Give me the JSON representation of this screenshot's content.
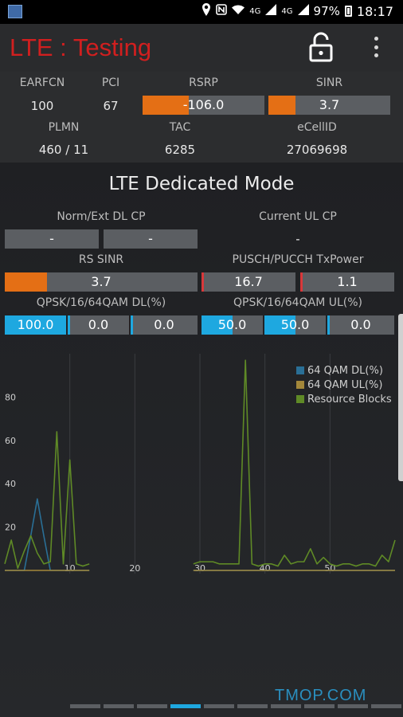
{
  "status_bar": {
    "net_small": "4G",
    "net_small2": "4G",
    "battery": "97%",
    "time": "18:17"
  },
  "app_bar": {
    "title": "LTE : Testing"
  },
  "cell_info": {
    "earfcn_label": "EARFCN",
    "earfcn_value": "100",
    "pci_label": "PCI",
    "pci_value": "67",
    "rsrp_label": "RSRP",
    "rsrp_value": "-106.0",
    "rsrp_fill": 0.38,
    "sinr_label": "SINR",
    "sinr_value": "3.7",
    "sinr_fill": 0.22,
    "plmn_label": "PLMN",
    "plmn_value": "460 / 11",
    "tac_label": "TAC",
    "tac_value": "6285",
    "ecellid_label": "eCellID",
    "ecellid_value": "27069698"
  },
  "dedicated": {
    "title": "LTE Dedicated Mode",
    "norm_dl_cp_label": "Norm/Ext DL CP",
    "norm_dl_cp_1": "-",
    "norm_dl_cp_2": "-",
    "current_ul_cp_label": "Current UL CP",
    "current_ul_cp_value": "-",
    "rs_sinr_label": "RS SINR",
    "rs_sinr_value": "3.7",
    "rs_sinr_fill": 0.22,
    "txpower_label": "PUSCH/PUCCH TxPower",
    "pusch_value": "16.7",
    "pucch_value": "1.1",
    "dl_qam_label": "QPSK/16/64QAM DL(%)",
    "dl_values": [
      "100.0",
      "0.0",
      "0.0"
    ],
    "dl_fills": [
      1.0,
      0.0,
      0.0
    ],
    "ul_qam_label": "QPSK/16/64QAM UL(%)",
    "ul_values": [
      "50.0",
      "50.0",
      "0.0"
    ],
    "ul_fills": [
      0.5,
      0.5,
      0.0
    ]
  },
  "chart_data": {
    "type": "line",
    "xlim": [
      0,
      60
    ],
    "ylim": [
      0,
      100
    ],
    "x_ticks": [
      "10",
      "20",
      "30",
      "40",
      "50"
    ],
    "y_ticks": [
      "20",
      "40",
      "60",
      "80"
    ],
    "legend_position": "top-right",
    "series": [
      {
        "name": "64 QAM DL(%)",
        "color": "#2a6f96",
        "segments": [
          {
            "x": [
              0,
              1,
              2,
              3,
              4,
              5,
              6,
              7,
              8,
              9,
              10,
              11,
              12,
              13
            ],
            "y": [
              0,
              0,
              0,
              0,
              16,
              33,
              16,
              0,
              0,
              0,
              0,
              0,
              0,
              0
            ]
          },
          {
            "x": [
              29,
              30,
              31,
              32,
              33,
              34,
              35,
              36,
              37,
              38,
              39,
              40,
              41,
              42,
              43,
              44,
              45,
              46,
              47,
              48,
              49,
              50,
              51,
              52,
              53,
              54,
              55,
              56,
              57,
              58,
              59,
              60
            ],
            "y": [
              0,
              0,
              0,
              0,
              0,
              0,
              0,
              0,
              0,
              0,
              0,
              0,
              0,
              0,
              0,
              0,
              0,
              0,
              0,
              0,
              0,
              0,
              0,
              0,
              0,
              0,
              0,
              0,
              0,
              0,
              0,
              0
            ]
          }
        ]
      },
      {
        "name": "64 QAM UL(%)",
        "color": "#a3873a",
        "segments": [
          {
            "x": [
              0,
              1,
              2,
              3,
              4,
              5,
              6,
              7,
              8,
              9,
              10,
              11,
              12,
              13
            ],
            "y": [
              0,
              0,
              0,
              0,
              0,
              0,
              0,
              0,
              0,
              0,
              0,
              0,
              0,
              0
            ]
          },
          {
            "x": [
              29,
              30,
              31,
              32,
              33,
              34,
              35,
              36,
              37,
              38,
              39,
              40,
              41,
              42,
              43,
              44,
              45,
              46,
              47,
              48,
              49,
              50,
              51,
              52,
              53,
              54,
              55,
              56,
              57,
              58,
              59,
              60
            ],
            "y": [
              0,
              0,
              0,
              0,
              0,
              0,
              0,
              0,
              0,
              0,
              0,
              0,
              0,
              0,
              0,
              0,
              0,
              0,
              0,
              0,
              0,
              0,
              0,
              0,
              0,
              0,
              0,
              0,
              0,
              0,
              0,
              0
            ]
          }
        ]
      },
      {
        "name": "Resource Blocks",
        "color": "#5f8a26",
        "segments": [
          {
            "x": [
              0,
              1,
              2,
              3,
              4,
              5,
              6,
              7,
              8,
              9,
              10,
              11,
              12,
              13
            ],
            "y": [
              3,
              14,
              1,
              9,
              16,
              8,
              3,
              4,
              64,
              3,
              51,
              3,
              2,
              3
            ]
          },
          {
            "x": [
              29,
              30,
              31,
              32,
              33,
              34,
              35,
              36,
              37,
              38,
              39,
              40,
              41,
              42,
              43,
              44,
              45,
              46,
              47,
              48,
              49,
              50,
              51,
              52,
              53,
              54,
              55,
              56,
              57,
              58,
              59,
              60
            ],
            "y": [
              3,
              4,
              4,
              4,
              3,
              3,
              3,
              3,
              97,
              3,
              2,
              3,
              3,
              2,
              7,
              3,
              4,
              4,
              10,
              3,
              6,
              3,
              2,
              3,
              3,
              2,
              3,
              3,
              2,
              7,
              4,
              14
            ]
          }
        ]
      }
    ]
  },
  "pager": {
    "count": 10,
    "active": 3
  },
  "watermark": "TMOP.COM"
}
